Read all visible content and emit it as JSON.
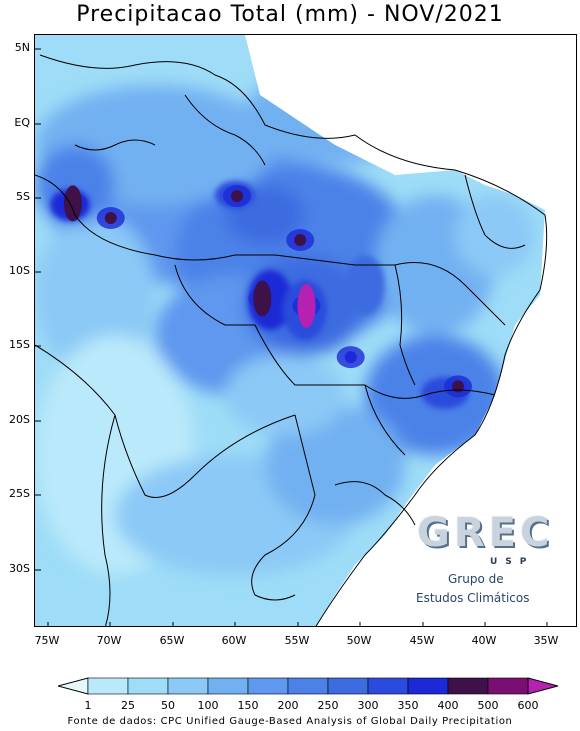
{
  "title": "Precipitacao Total (mm) - NOV/2021",
  "latitude_labels": [
    "5N",
    "EQ",
    "5S",
    "10S",
    "15S",
    "20S",
    "25S",
    "30S"
  ],
  "longitude_labels": [
    "75W",
    "70W",
    "65W",
    "60W",
    "55W",
    "50W",
    "45W",
    "40W",
    "35W"
  ],
  "colorbar": {
    "ticks": [
      "1",
      "25",
      "50",
      "100",
      "150",
      "200",
      "250",
      "300",
      "350",
      "400",
      "500",
      "600"
    ],
    "colors": [
      "#e6f7fb",
      "#b9e9fa",
      "#9edcf7",
      "#8cc9f6",
      "#72b1f1",
      "#5f98ee",
      "#4c82e8",
      "#3c6ce0",
      "#2a4bdc",
      "#1b2ad6",
      "#3e1148",
      "#7a0e73",
      "#b522b2"
    ]
  },
  "source": "Fonte de dados: CPC Unified Gauge-Based Analysis of Global Daily Precipitation",
  "logo": {
    "letters": "GREC",
    "sub": "USP",
    "line1": "Grupo de",
    "line2": "Estudos Climáticos"
  },
  "chart_data": {
    "type": "heatmap",
    "title": "Precipitacao Total (mm) - NOV/2021",
    "units": "mm",
    "lon_range": [
      -76,
      -33
    ],
    "lat_range": [
      -34.5,
      6
    ],
    "levels": [
      1,
      25,
      50,
      100,
      150,
      200,
      250,
      300,
      350,
      400,
      500,
      600
    ],
    "maxima": [
      {
        "lon": -73,
        "lat": -5.5,
        "value": 450
      },
      {
        "lon": -70,
        "lat": -6.5,
        "value": 420
      },
      {
        "lon": -60,
        "lat": -5,
        "value": 420
      },
      {
        "lon": -55,
        "lat": -8,
        "value": 410
      },
      {
        "lon": -58,
        "lat": -12,
        "value": 450
      },
      {
        "lon": -54.5,
        "lat": -12.5,
        "value": 520
      },
      {
        "lon": -42.5,
        "lat": -18,
        "value": 410
      },
      {
        "lon": -51,
        "lat": -16,
        "value": 360
      }
    ]
  }
}
